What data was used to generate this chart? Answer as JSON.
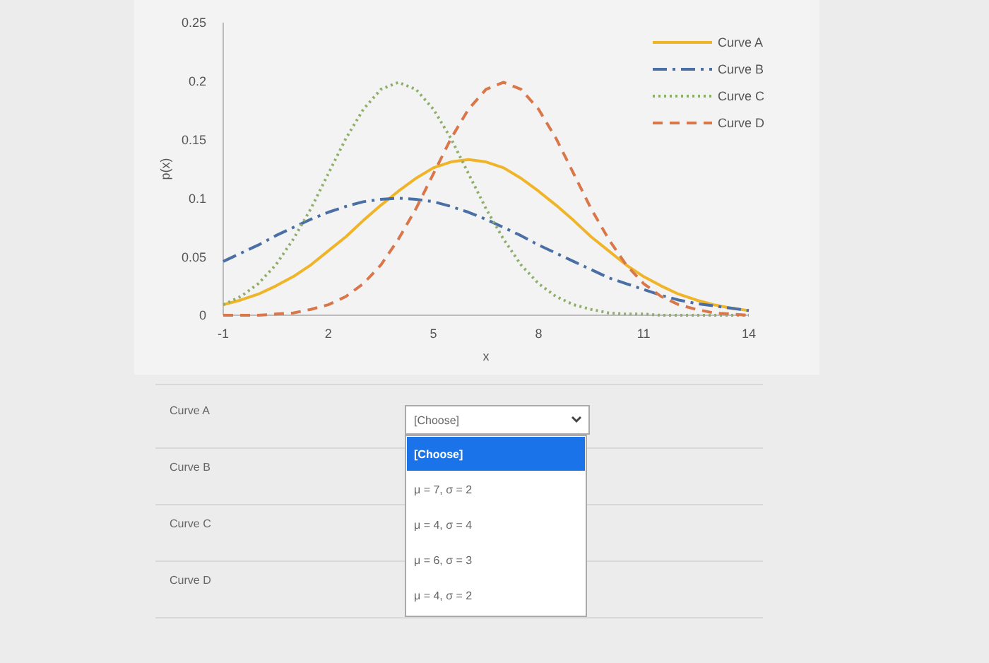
{
  "chart_data": {
    "type": "line",
    "xlabel": "x",
    "ylabel": "p(x)",
    "x": [
      -1,
      -0.5,
      0,
      0.5,
      1,
      1.5,
      2,
      2.5,
      3,
      3.5,
      4,
      4.5,
      5,
      5.5,
      6,
      6.5,
      7,
      7.5,
      8,
      8.5,
      9,
      9.5,
      10,
      10.5,
      11,
      11.5,
      12,
      12.5,
      13,
      13.5,
      14
    ],
    "series": [
      {
        "name": "Curve A",
        "color": "#f0b429",
        "line_style": "solid",
        "values": [
          0.009,
          0.013,
          0.018,
          0.025,
          0.033,
          0.043,
          0.055,
          0.067,
          0.081,
          0.094,
          0.106,
          0.117,
          0.126,
          0.131,
          0.133,
          0.131,
          0.126,
          0.117,
          0.106,
          0.094,
          0.081,
          0.067,
          0.055,
          0.043,
          0.033,
          0.025,
          0.018,
          0.013,
          0.009,
          0.006,
          0.004
        ]
      },
      {
        "name": "Curve B",
        "color": "#4a6fa5",
        "line_style": "dashdot",
        "values": [
          0.046,
          0.053,
          0.06,
          0.068,
          0.075,
          0.082,
          0.088,
          0.093,
          0.097,
          0.099,
          0.1,
          0.099,
          0.097,
          0.093,
          0.088,
          0.082,
          0.075,
          0.068,
          0.06,
          0.053,
          0.046,
          0.039,
          0.032,
          0.027,
          0.022,
          0.017,
          0.013,
          0.01,
          0.008,
          0.006,
          0.004
        ]
      },
      {
        "name": "Curve C",
        "color": "#8fae6a",
        "line_style": "dotted",
        "values": [
          0.009,
          0.016,
          0.027,
          0.043,
          0.065,
          0.091,
          0.121,
          0.151,
          0.176,
          0.193,
          0.199,
          0.193,
          0.176,
          0.151,
          0.121,
          0.091,
          0.065,
          0.043,
          0.027,
          0.016,
          0.009,
          0.005,
          0.002,
          0.001,
          0.001,
          0,
          0,
          0,
          0,
          0,
          0
        ]
      },
      {
        "name": "Curve D",
        "color": "#d9774a",
        "line_style": "dashed",
        "values": [
          0,
          0,
          0,
          0.001,
          0.002,
          0.005,
          0.009,
          0.016,
          0.027,
          0.043,
          0.065,
          0.091,
          0.121,
          0.151,
          0.176,
          0.193,
          0.199,
          0.193,
          0.176,
          0.151,
          0.121,
          0.091,
          0.065,
          0.043,
          0.027,
          0.016,
          0.009,
          0.005,
          0.002,
          0.001,
          0
        ]
      }
    ],
    "xlim": [
      -1,
      14
    ],
    "xticks": [
      -1,
      2,
      5,
      8,
      11,
      14
    ],
    "ylim": [
      0,
      0.25
    ],
    "yticks": [
      0,
      0.05,
      0.1,
      0.15,
      0.2,
      0.25
    ],
    "grid": false,
    "legend": "top right",
    "annotations": [
      "Curve A",
      "Curve B",
      "Curve C",
      "Curve D",
      "[Choose]",
      "[Choose]",
      "μ = 7, σ = 2",
      "μ = 4, σ = 4",
      "μ = 6, σ = 3",
      "μ = 4, σ = 2"
    ]
  }
}
